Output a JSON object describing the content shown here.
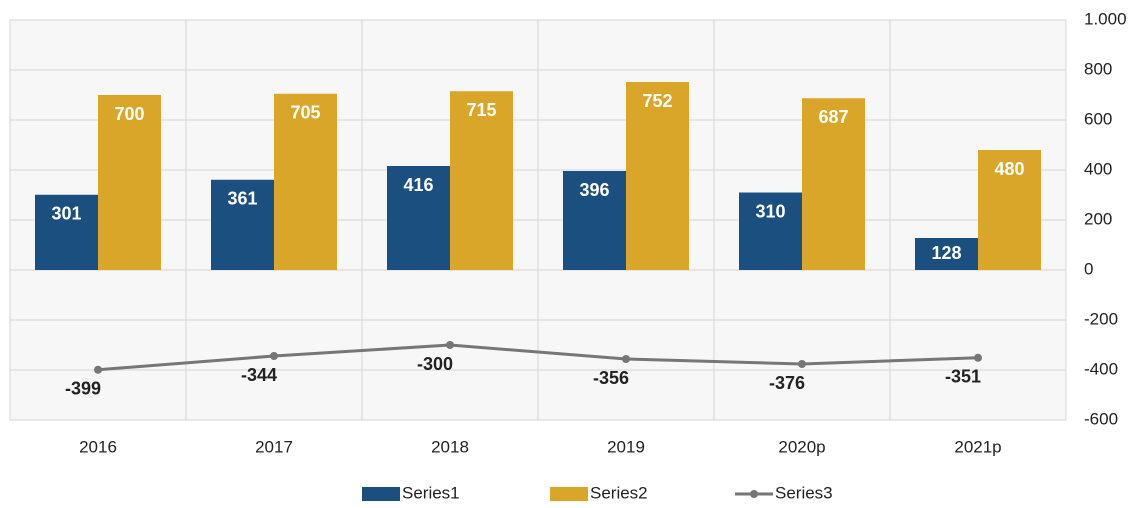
{
  "chart_data": {
    "type": "bar-line",
    "categories": [
      "2016",
      "2017",
      "2018",
      "2019",
      "2020p",
      "2021p"
    ],
    "series": [
      {
        "name": "Series1",
        "type": "bar",
        "color": "#1b4f80",
        "values": [
          301,
          361,
          416,
          396,
          310,
          128
        ]
      },
      {
        "name": "Series2",
        "type": "bar",
        "color": "#daa62a",
        "values": [
          700,
          705,
          715,
          752,
          687,
          480
        ]
      },
      {
        "name": "Series3",
        "type": "line",
        "color": "#767676",
        "values": [
          -399,
          -344,
          -300,
          -356,
          -376,
          -351
        ]
      }
    ],
    "ylim": [
      -600,
      1000
    ],
    "yticks": [
      -600,
      -400,
      -200,
      0,
      200,
      400,
      600,
      800,
      {
        "value": 1000,
        "label": "1.000"
      }
    ],
    "grid": true,
    "legend": "bottom"
  }
}
